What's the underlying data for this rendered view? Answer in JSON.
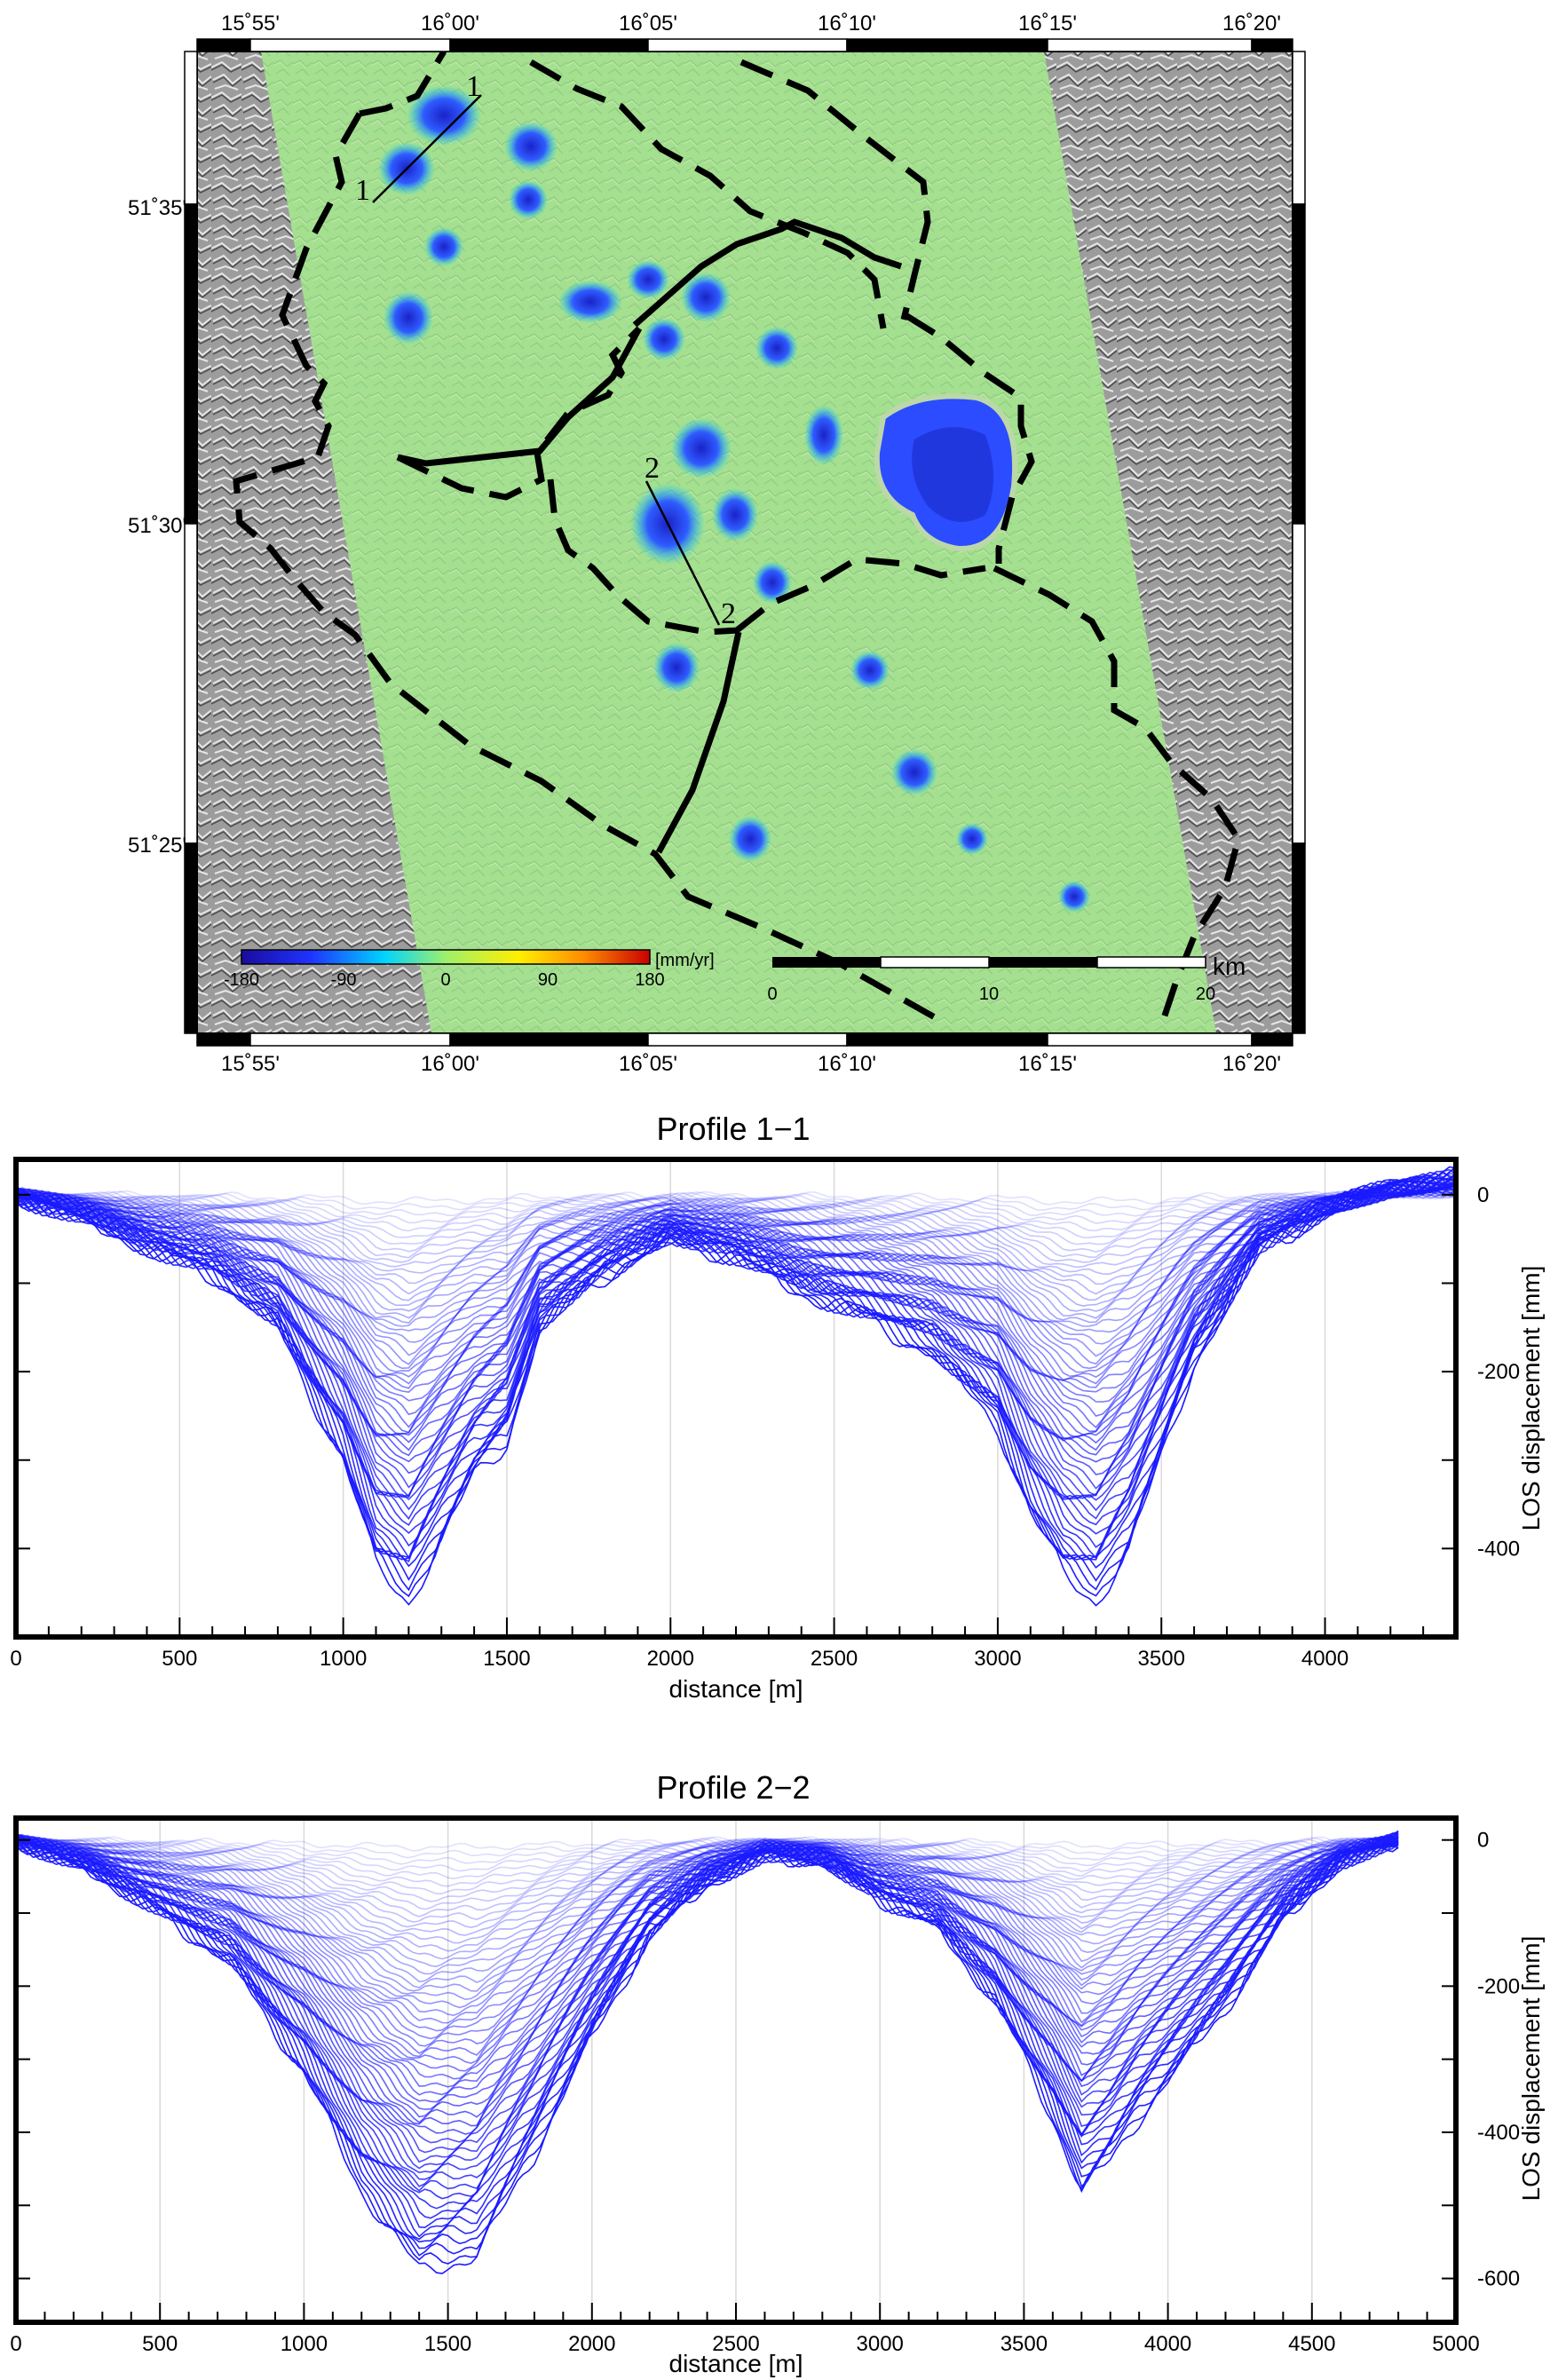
{
  "chart_data": [
    {
      "type": "heatmap",
      "title": "",
      "lon_ticks": [
        "15˚55'",
        "16˚00'",
        "16˚05'",
        "16˚10'",
        "16˚15'",
        "16˚20'"
      ],
      "lat_ticks": [
        "51˚35'",
        "51˚30'",
        "51˚25'"
      ],
      "colorbar": {
        "unit": "[mm/yr]",
        "ticks": [
          "-180",
          "-90",
          "0",
          "90",
          "180"
        ],
        "range": [
          -180,
          180
        ],
        "colors": [
          "#1a0c9e",
          "#1f33ff",
          "#00d4ff",
          "#9ef06b",
          "#ffef00",
          "#ff8a00",
          "#c80000"
        ]
      },
      "scalebar": {
        "unit": "km",
        "ticks": [
          "0",
          "10",
          "20"
        ]
      },
      "profile_lines": [
        {
          "label": "1"
        },
        {
          "label": "2"
        }
      ],
      "background_color": "#9fe08a",
      "hillshade_color": "#9a9a9a"
    },
    {
      "type": "line",
      "title": "Profile 1−1",
      "xlabel": "distance [m]",
      "ylabel": "LOS displacement [mm]",
      "xlim": [
        0,
        4400
      ],
      "ylim": [
        -500,
        40
      ],
      "x_ticks": [
        "0",
        "500",
        "1000",
        "1500",
        "2000",
        "2500",
        "3000",
        "3500",
        "4000"
      ],
      "y_ticks": [
        "0",
        "-200",
        "-400"
      ],
      "series_count": 60,
      "series_color": "#1a1aff",
      "final_profile": {
        "x": [
          0,
          200,
          400,
          600,
          800,
          1000,
          1100,
          1200,
          1300,
          1400,
          1500,
          1600,
          1800,
          2000,
          2200,
          2400,
          2600,
          2800,
          3000,
          3100,
          3200,
          3300,
          3400,
          3500,
          3600,
          3800,
          4000,
          4200,
          4400
        ],
        "y": [
          0,
          -25,
          -60,
          -90,
          -150,
          -300,
          -420,
          -460,
          -390,
          -320,
          -280,
          -150,
          -90,
          -50,
          -70,
          -110,
          -140,
          -180,
          -260,
          -360,
          -430,
          -460,
          -400,
          -300,
          -190,
          -60,
          -20,
          10,
          20
        ]
      }
    },
    {
      "type": "line",
      "title": "Profile 2−2",
      "xlabel": "distance [m]",
      "ylabel": "LOS displacement [mm]",
      "xlim": [
        0,
        5000
      ],
      "ylim": [
        -660,
        30
      ],
      "x_ticks": [
        "0",
        "500",
        "1000",
        "1500",
        "2000",
        "2500",
        "3000",
        "3500",
        "4000",
        "4500",
        "5000"
      ],
      "y_ticks": [
        "0",
        "-200",
        "-400",
        "-600"
      ],
      "series_count": 60,
      "series_color": "#1a1aff",
      "final_profile": {
        "x": [
          0,
          250,
          500,
          750,
          1000,
          1200,
          1400,
          1600,
          1800,
          2000,
          2200,
          2400,
          2600,
          2800,
          3000,
          3200,
          3400,
          3600,
          3700,
          3800,
          3900,
          4000,
          4200,
          4400,
          4600,
          4800
        ],
        "y": [
          0,
          -40,
          -100,
          -170,
          -320,
          -480,
          -590,
          -570,
          -430,
          -270,
          -130,
          -60,
          -20,
          -30,
          -80,
          -120,
          -220,
          -380,
          -480,
          -440,
          -380,
          -330,
          -230,
          -110,
          -30,
          0
        ]
      }
    }
  ]
}
